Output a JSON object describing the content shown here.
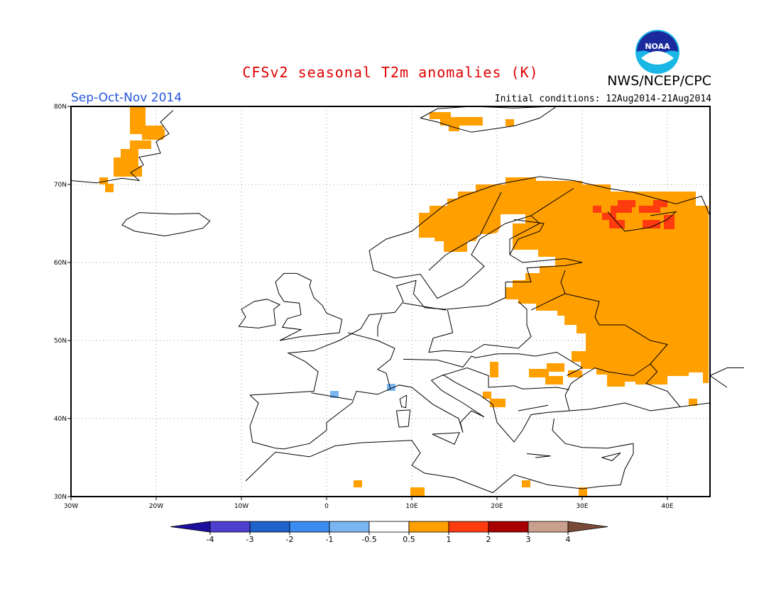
{
  "header": {
    "title": "CFSv2 seasonal T2m anomalies (K)",
    "agency": "NWS/NCEP/CPC",
    "season": "Sep-Oct-Nov 2014",
    "initial_conditions": "Initial conditions: 12Aug2014-21Aug2014",
    "logo_text": "NOAA"
  },
  "map": {
    "projection": "lat-lon",
    "lon_range": [
      -30,
      45
    ],
    "lat_range": [
      30,
      80
    ],
    "lon_ticks": [
      "30W",
      "20W",
      "10W",
      "0",
      "10E",
      "20E",
      "30E",
      "40E"
    ],
    "lat_ticks": [
      "30N",
      "40N",
      "50N",
      "60N",
      "70N",
      "80N"
    ],
    "grid": "dotted"
  },
  "colorbar": {
    "labels": [
      "-4",
      "-3",
      "-2",
      "-1",
      "-0.5",
      "0.5",
      "1",
      "2",
      "3",
      "4"
    ],
    "colors": [
      "#1a0f9e",
      "#4d3fd0",
      "#1f62cc",
      "#3b8cf0",
      "#7ab6f2",
      "#ffffff",
      "#ff9f00",
      "#ff3b10",
      "#a80000",
      "#c9a08c",
      "#7a4a38"
    ]
  }
}
